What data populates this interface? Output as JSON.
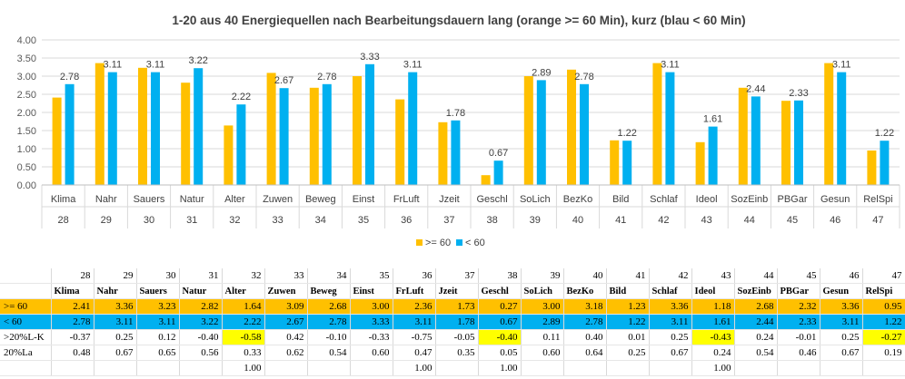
{
  "chart_data": {
    "type": "bar",
    "title": "1-20 aus 40 Energiequellen nach Bearbeitungsdauern lang (orange >= 60 Min), kurz (blau < 60 Min)",
    "categories": [
      "Klima",
      "Nahr",
      "Sauers",
      "Natur",
      "Alter",
      "Zuwen",
      "Beweg",
      "Einst",
      "FrLuft",
      "Jzeit",
      "Geschl",
      "SoLich",
      "BezKo",
      "Bild",
      "Schlaf",
      "Ideol",
      "SozEinb",
      "PBGar",
      "Gesun",
      "RelSpi"
    ],
    "category_numbers": [
      "28",
      "29",
      "30",
      "31",
      "32",
      "33",
      "34",
      "35",
      "36",
      "37",
      "38",
      "39",
      "40",
      "41",
      "42",
      "43",
      "44",
      "45",
      "46",
      "47"
    ],
    "series": [
      {
        "name": ">= 60",
        "color": "#ffc000",
        "values": [
          2.41,
          3.36,
          3.23,
          2.82,
          1.64,
          3.09,
          2.68,
          3.0,
          2.36,
          1.73,
          0.27,
          3.0,
          3.18,
          1.23,
          3.36,
          1.18,
          2.68,
          2.32,
          3.36,
          0.95
        ]
      },
      {
        "name": "< 60",
        "color": "#00b0f0",
        "values": [
          2.78,
          3.11,
          3.11,
          3.22,
          2.22,
          2.67,
          2.78,
          3.33,
          3.11,
          1.78,
          0.67,
          2.89,
          2.78,
          1.22,
          3.11,
          1.61,
          2.44,
          2.33,
          3.11,
          1.22
        ]
      }
    ],
    "data_labels": [
      "2.78",
      "3.11",
      "3.11",
      "3.22",
      "2.22",
      "2.67",
      "2.78",
      "3.33",
      "3.11",
      "1.78",
      "0.67",
      "2.89",
      "2.78",
      "1.22",
      "3.11",
      "1.61",
      "2.44",
      "2.33",
      "3.11",
      "1.22"
    ],
    "ylim": [
      0,
      4
    ],
    "yticks": [
      "0.00",
      "0.50",
      "1.00",
      "1.50",
      "2.00",
      "2.50",
      "3.00",
      "3.50",
      "4.00"
    ],
    "grid": true,
    "legend_position": "bottom",
    "xlabel": "",
    "ylabel": ""
  },
  "table": {
    "header_numbers": [
      "28",
      "29",
      "30",
      "31",
      "32",
      "33",
      "34",
      "35",
      "36",
      "37",
      "38",
      "39",
      "40",
      "41",
      "42",
      "43",
      "44",
      "45",
      "46",
      "47"
    ],
    "header_abbr": [
      "Klima",
      "Nahr",
      "Sauers",
      "Natur",
      "Alter",
      "Zuwen",
      "Beweg",
      "Einst",
      "FrLuft",
      "Jzeit",
      "Geschl",
      "SoLich",
      "BezKo",
      "Bild",
      "Schlaf",
      "Ideol",
      "SozEinb",
      "PBGar",
      "Gesun",
      "RelSpi"
    ],
    "rows": [
      {
        "label": ">= 60",
        "style": "orange",
        "values": [
          "2.41",
          "3.36",
          "3.23",
          "2.82",
          "1.64",
          "3.09",
          "2.68",
          "3.00",
          "2.36",
          "1.73",
          "0.27",
          "3.00",
          "3.18",
          "1.23",
          "3.36",
          "1.18",
          "2.68",
          "2.32",
          "3.36",
          "0.95"
        ]
      },
      {
        "label": "< 60",
        "style": "blue",
        "values": [
          "2.78",
          "3.11",
          "3.11",
          "3.22",
          "2.22",
          "2.67",
          "2.78",
          "3.33",
          "3.11",
          "1.78",
          "0.67",
          "2.89",
          "2.78",
          "1.22",
          "3.11",
          "1.61",
          "2.44",
          "2.33",
          "3.11",
          "1.22"
        ]
      },
      {
        "label": ">20%L-K",
        "style": "plain",
        "highlight": [
          4,
          10,
          15,
          19
        ],
        "values": [
          "-0.37",
          "0.25",
          "0.12",
          "-0.40",
          "-0.58",
          "0.42",
          "-0.10",
          "-0.33",
          "-0.75",
          "-0.05",
          "-0.40",
          "0.11",
          "0.40",
          "0.01",
          "0.25",
          "-0.43",
          "0.24",
          "-0.01",
          "0.25",
          "-0.27"
        ]
      },
      {
        "label": "20%La",
        "style": "plain",
        "values": [
          "0.48",
          "0.67",
          "0.65",
          "0.56",
          "0.33",
          "0.62",
          "0.54",
          "0.60",
          "0.47",
          "0.35",
          "0.05",
          "0.60",
          "0.64",
          "0.25",
          "0.67",
          "0.24",
          "0.54",
          "0.46",
          "0.67",
          "0.19"
        ]
      },
      {
        "label": "",
        "style": "plain",
        "values": [
          "",
          "",
          "",
          "",
          "1.00",
          "",
          "",
          "",
          "1.00",
          "",
          "1.00",
          "",
          "",
          "",
          "",
          "1.00",
          "",
          "",
          "",
          ""
        ]
      }
    ]
  }
}
